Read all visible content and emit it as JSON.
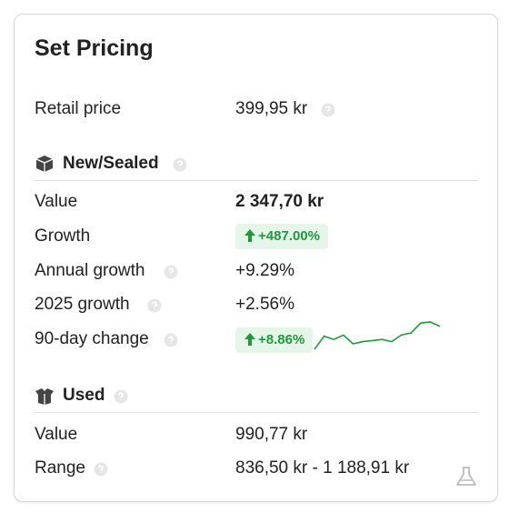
{
  "title": "Set Pricing",
  "retail": {
    "label": "Retail price",
    "value": "399,95 kr"
  },
  "new_sealed": {
    "heading": "New/Sealed",
    "value": {
      "label": "Value",
      "value": "2 347,70 kr"
    },
    "growth": {
      "label": "Growth",
      "value": "+487.00%"
    },
    "annual_growth": {
      "label": "Annual growth",
      "value": "+9.29%"
    },
    "year_growth": {
      "label": "2025 growth",
      "value": "+2.56%"
    },
    "change_90d": {
      "label": "90-day change",
      "value": "+8.86%"
    },
    "sparkline": [
      8,
      20,
      17,
      21,
      13,
      15,
      16,
      17,
      15,
      21,
      23,
      32,
      33,
      29
    ]
  },
  "used": {
    "heading": "Used",
    "value": {
      "label": "Value",
      "value": "990,77 kr"
    },
    "range": {
      "label": "Range",
      "value": "836,50 kr - 1 188,91 kr"
    }
  }
}
